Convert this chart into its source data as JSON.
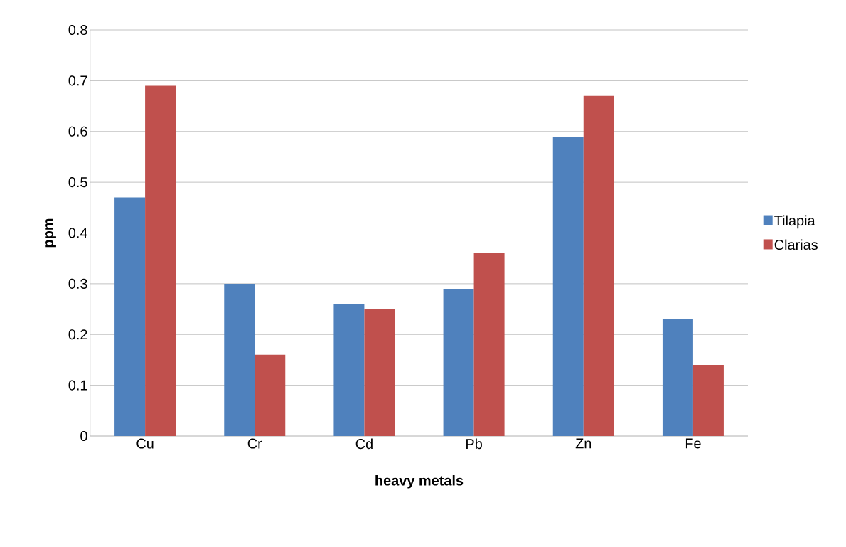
{
  "chart_data": {
    "type": "bar",
    "xlabel": "heavy metals",
    "ylabel": "ppm",
    "categories": [
      "Cu",
      "Cr",
      "Cd",
      "Pb",
      "Zn",
      "Fe"
    ],
    "series": [
      {
        "name": "Tilapia",
        "color": "#4f81bd",
        "values": [
          0.47,
          0.3,
          0.26,
          0.29,
          0.59,
          0.23
        ]
      },
      {
        "name": "Clarias",
        "color": "#c0504d",
        "values": [
          0.69,
          0.16,
          0.25,
          0.36,
          0.67,
          0.14
        ]
      }
    ],
    "ylim": [
      0,
      0.8
    ],
    "yticks": [
      0,
      0.1,
      0.2,
      0.3,
      0.4,
      0.5,
      0.6,
      0.7,
      0.8
    ],
    "grid": "y",
    "legend": "right"
  }
}
